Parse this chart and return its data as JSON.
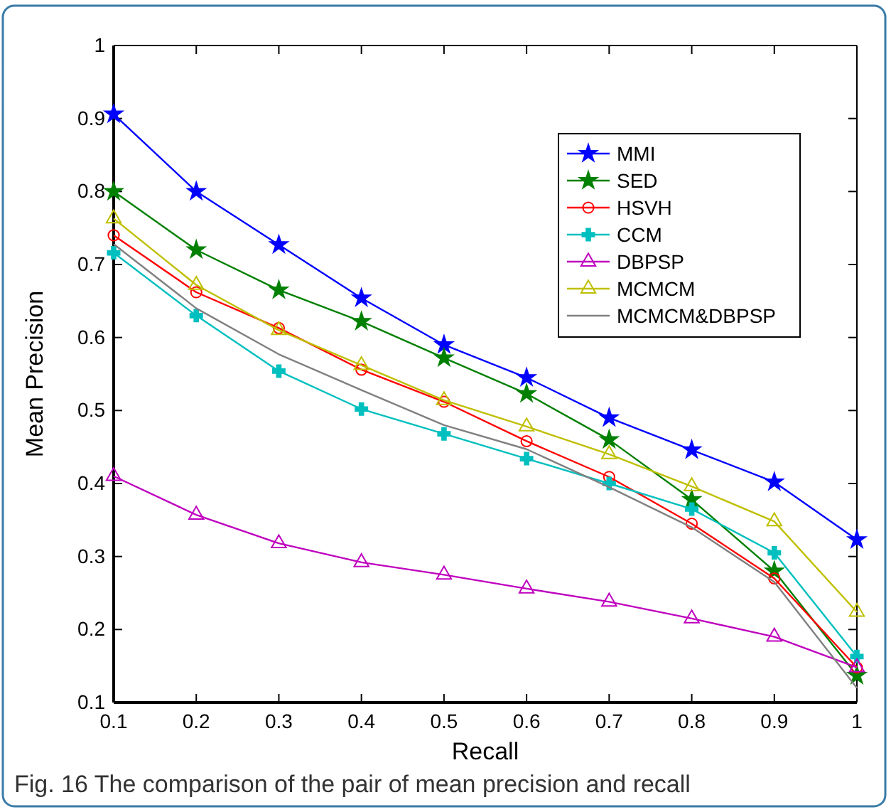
{
  "chart_data": {
    "type": "line",
    "xlabel": "Recall",
    "ylabel": "Mean Precision",
    "x": [
      0.1,
      0.2,
      0.3,
      0.4,
      0.5,
      0.6,
      0.7,
      0.8,
      0.9,
      1
    ],
    "xlim": [
      0.1,
      1
    ],
    "xticks": [
      0.1,
      0.2,
      0.3,
      0.4,
      0.5,
      0.6,
      0.7,
      0.8,
      0.9,
      1
    ],
    "ylim": [
      0.1,
      1
    ],
    "yticks": [
      0.1,
      0.2,
      0.3,
      0.4,
      0.5,
      0.6,
      0.7,
      0.8,
      0.9,
      1
    ],
    "grid": false,
    "legend": "top right",
    "series": [
      {
        "name": "MMI",
        "color": "#0000ff",
        "marker": "star",
        "values": [
          0.906,
          0.8,
          0.727,
          0.654,
          0.59,
          0.545,
          0.49,
          0.446,
          0.402,
          0.323
        ]
      },
      {
        "name": "SED",
        "color": "#008000",
        "marker": "star",
        "values": [
          0.8,
          0.72,
          0.665,
          0.622,
          0.572,
          0.523,
          0.46,
          0.378,
          0.28,
          0.137
        ]
      },
      {
        "name": "HSVH",
        "color": "#ff0000",
        "marker": "circle",
        "values": [
          0.74,
          0.662,
          0.613,
          0.556,
          0.512,
          0.458,
          0.409,
          0.345,
          0.27,
          0.148
        ]
      },
      {
        "name": "CCM",
        "color": "#00bfbf",
        "marker": "cross",
        "values": [
          0.716,
          0.63,
          0.554,
          0.502,
          0.468,
          0.434,
          0.4,
          0.365,
          0.305,
          0.163
        ]
      },
      {
        "name": "DBPSP",
        "color": "#bf00bf",
        "marker": "triangle",
        "values": [
          0.41,
          0.357,
          0.318,
          0.292,
          0.275,
          0.256,
          0.238,
          0.215,
          0.19,
          0.148
        ]
      },
      {
        "name": "MCMCM",
        "color": "#bfbf00",
        "marker": "triangle",
        "values": [
          0.763,
          0.672,
          0.61,
          0.562,
          0.514,
          0.478,
          0.44,
          0.396,
          0.348,
          0.224
        ]
      },
      {
        "name": "MCMCM&DBPSP",
        "color": "#808080",
        "marker": "none",
        "values": [
          0.728,
          0.64,
          0.577,
          0.528,
          0.48,
          0.447,
          0.395,
          0.34,
          0.265,
          0.12
        ]
      }
    ],
    "annotations": [
      "Fig. 16 The comparison of the pair of mean precision and recall"
    ]
  }
}
